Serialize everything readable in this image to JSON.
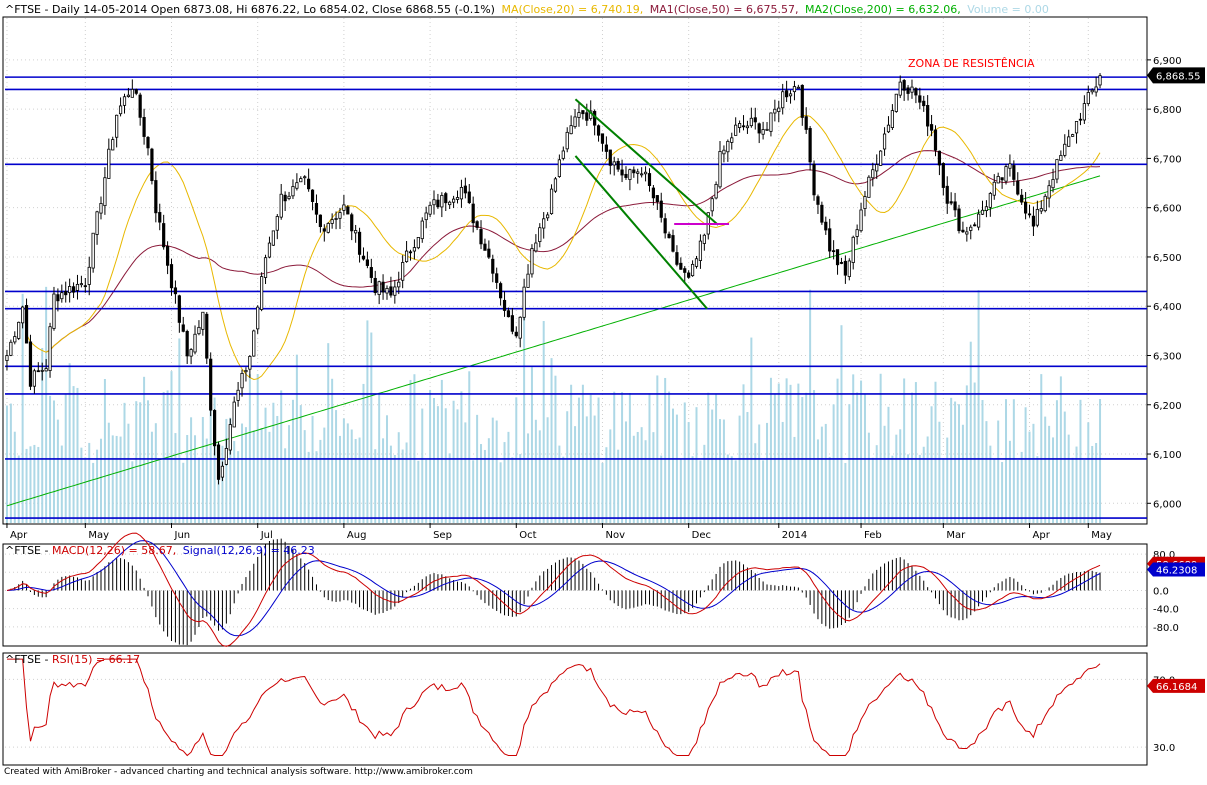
{
  "chart_data": {
    "type": "candlestick",
    "symbol": "^FTSE",
    "main_panel": {
      "header": {
        "prefix": "^FTSE - Daily 14-05-2014 Open 6873.08, Hi 6876.22, Lo 6854.02, Close 6868.55 (-0.1%)",
        "ma": "MA(Close,20) = 6,740.19,",
        "ma1": "MA1(Close,50) = 6,675.57,",
        "ma2": "MA2(Close,200) = 6,632.06,",
        "volume": "Volume = 0.00"
      },
      "annotation": "ZONA DE RESISTÊNCIA",
      "last_price_label": "6,868.55",
      "y_ticks": [
        "6,900",
        "6,800",
        "6,700",
        "6,600",
        "6,500",
        "6,400",
        "6,300",
        "6,200",
        "6,100",
        "6,000"
      ],
      "y_tick_values": [
        6900,
        6800,
        6700,
        6600,
        6500,
        6400,
        6300,
        6200,
        6100,
        6000
      ],
      "x_labels": [
        "Apr",
        "May",
        "Jun",
        "Jul",
        "Aug",
        "Sep",
        "Oct",
        "Nov",
        "Dec",
        "2014",
        "Feb",
        "Mar",
        "Apr",
        "May"
      ],
      "ylim": [
        5960,
        6985
      ],
      "horizontal_levels": [
        6865,
        6840,
        6688,
        6430,
        6395,
        6278,
        6222,
        6090,
        5970
      ],
      "trend_channel": {
        "upper": [
          [
            0.52,
            6820
          ],
          [
            0.65,
            6565
          ]
        ],
        "lower": [
          [
            0.52,
            6705
          ],
          [
            0.64,
            6395
          ]
        ]
      },
      "marker_line": {
        "y": 6567,
        "x_range": [
          0.61,
          0.66
        ]
      },
      "num_bars": 280,
      "path_anchors": [
        [
          0,
          6300
        ],
        [
          4,
          6400
        ],
        [
          6,
          6250
        ],
        [
          10,
          6280
        ],
        [
          12,
          6420
        ],
        [
          20,
          6450
        ],
        [
          28,
          6790
        ],
        [
          32,
          6850
        ],
        [
          36,
          6720
        ],
        [
          38,
          6600
        ],
        [
          42,
          6450
        ],
        [
          46,
          6300
        ],
        [
          50,
          6380
        ],
        [
          52,
          6200
        ],
        [
          54,
          6050
        ],
        [
          58,
          6200
        ],
        [
          62,
          6300
        ],
        [
          66,
          6500
        ],
        [
          70,
          6620
        ],
        [
          76,
          6650
        ],
        [
          80,
          6560
        ],
        [
          86,
          6600
        ],
        [
          90,
          6520
        ],
        [
          94,
          6440
        ],
        [
          98,
          6420
        ],
        [
          102,
          6500
        ],
        [
          108,
          6600
        ],
        [
          116,
          6640
        ],
        [
          120,
          6560
        ],
        [
          124,
          6480
        ],
        [
          128,
          6370
        ],
        [
          130,
          6350
        ],
        [
          134,
          6520
        ],
        [
          138,
          6600
        ],
        [
          142,
          6720
        ],
        [
          146,
          6800
        ],
        [
          150,
          6780
        ],
        [
          154,
          6700
        ],
        [
          158,
          6660
        ],
        [
          162,
          6680
        ],
        [
          166,
          6600
        ],
        [
          170,
          6500
        ],
        [
          174,
          6450
        ],
        [
          178,
          6540
        ],
        [
          182,
          6700
        ],
        [
          186,
          6760
        ],
        [
          190,
          6770
        ],
        [
          194,
          6760
        ],
        [
          198,
          6830
        ],
        [
          202,
          6850
        ],
        [
          206,
          6640
        ],
        [
          210,
          6520
        ],
        [
          214,
          6460
        ],
        [
          218,
          6600
        ],
        [
          222,
          6700
        ],
        [
          226,
          6800
        ],
        [
          228,
          6860
        ],
        [
          232,
          6830
        ],
        [
          236,
          6760
        ],
        [
          240,
          6620
        ],
        [
          244,
          6550
        ],
        [
          248,
          6580
        ],
        [
          252,
          6640
        ],
        [
          256,
          6680
        ],
        [
          260,
          6600
        ],
        [
          262,
          6560
        ],
        [
          266,
          6650
        ],
        [
          270,
          6720
        ],
        [
          274,
          6790
        ],
        [
          278,
          6850
        ],
        [
          279,
          6868
        ]
      ]
    },
    "macd_panel": {
      "header": {
        "prefix": "^FTSE - ",
        "macd": "MACD(12,26) = 58.67,",
        "signal": "Signal(12,26,9) = 46.23"
      },
      "y_ticks": [
        "80.0",
        "40.0",
        "0.0",
        "-40.0",
        "-80.0"
      ],
      "y_tick_values": [
        80,
        40,
        0,
        -40,
        -80
      ],
      "ylim": [
        -120,
        100
      ],
      "macd_label": "58.6689",
      "signal_label": "46.2308",
      "macd_last": 58.67,
      "signal_last": 46.23
    },
    "rsi_panel": {
      "header": {
        "prefix": "^FTSE - ",
        "rsi": "RSI(15) = 66.17"
      },
      "y_ticks": [
        "70.0",
        "30.0"
      ],
      "y_tick_values": [
        70,
        30
      ],
      "ylim": [
        20,
        85
      ],
      "rsi_label": "66.1684",
      "rsi_last": 66.17
    },
    "colors": {
      "candle": "#000000",
      "level_line": "#0000cc",
      "ma20": "#e8b800",
      "ma50": "#8b1a3a",
      "ma200": "#00b000",
      "volume": "#add8e6",
      "macd": "#cc0000",
      "signal": "#0000cc",
      "rsi": "#cc0000",
      "annotation": "#ff0000",
      "trend_channel": "#008000",
      "marker": "#cc00cc"
    }
  },
  "footer": "Created with AmiBroker - advanced charting and technical analysis software. http://www.amibroker.com"
}
